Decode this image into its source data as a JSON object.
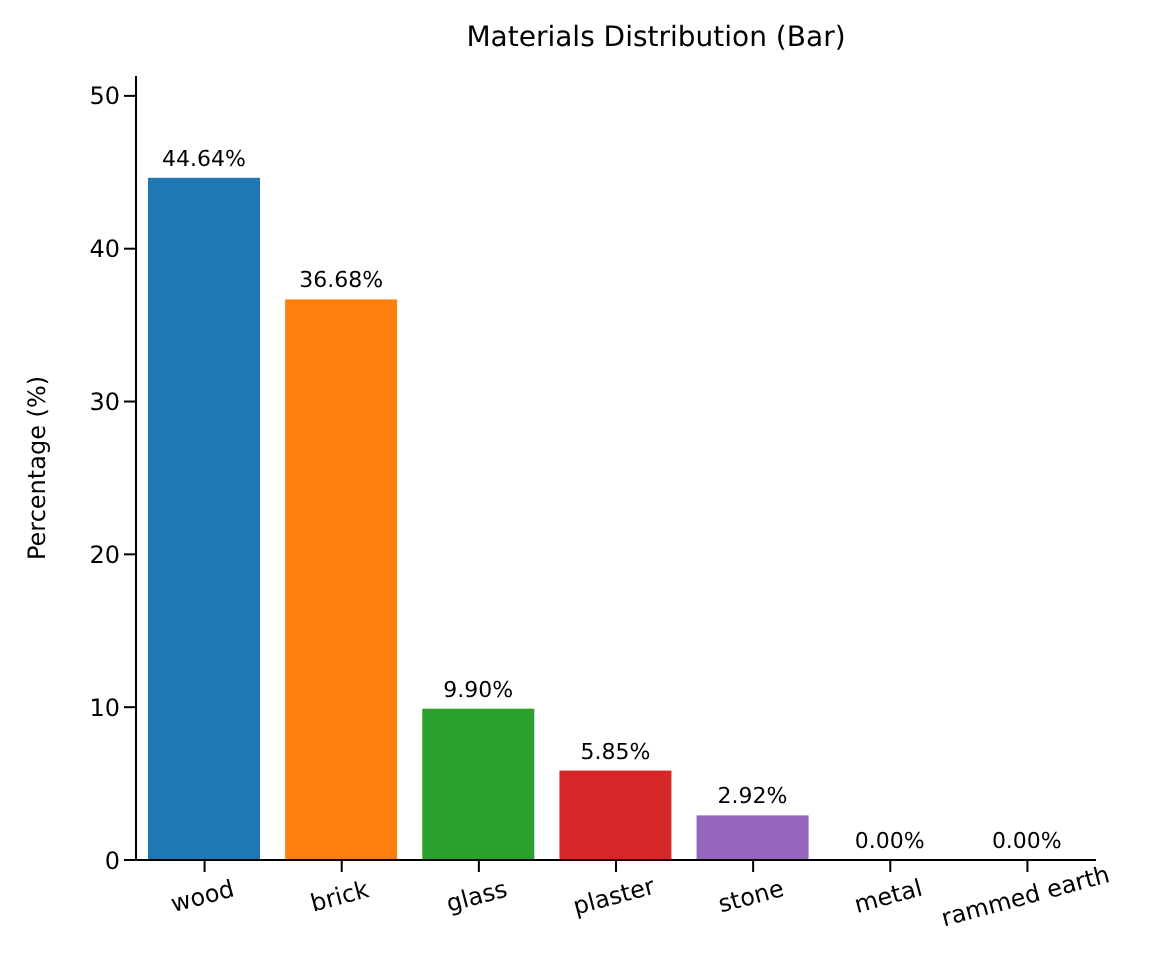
{
  "chart_data": {
    "type": "bar",
    "title": "Materials Distribution (Bar)",
    "ylabel": "Percentage (%)",
    "categories": [
      "wood",
      "brick",
      "glass",
      "plaster",
      "stone",
      "metal",
      "rammed earth"
    ],
    "values": [
      44.64,
      36.68,
      9.9,
      5.85,
      2.92,
      0,
      0
    ],
    "colors": [
      "#1f77b4",
      "#ff7f0e",
      "#2ca02c",
      "#d62728",
      "#9467bd",
      "#8c564b",
      "#e377c2"
    ],
    "value_labels": [
      "44.64%",
      "36.68%",
      "9.90%",
      "5.85%",
      "2.92%",
      "0.00%",
      "0.00%"
    ],
    "ylim": [
      0,
      51.3
    ],
    "yticks": [
      0,
      10,
      20,
      30,
      40,
      50
    ],
    "grid": false,
    "legend": false
  }
}
